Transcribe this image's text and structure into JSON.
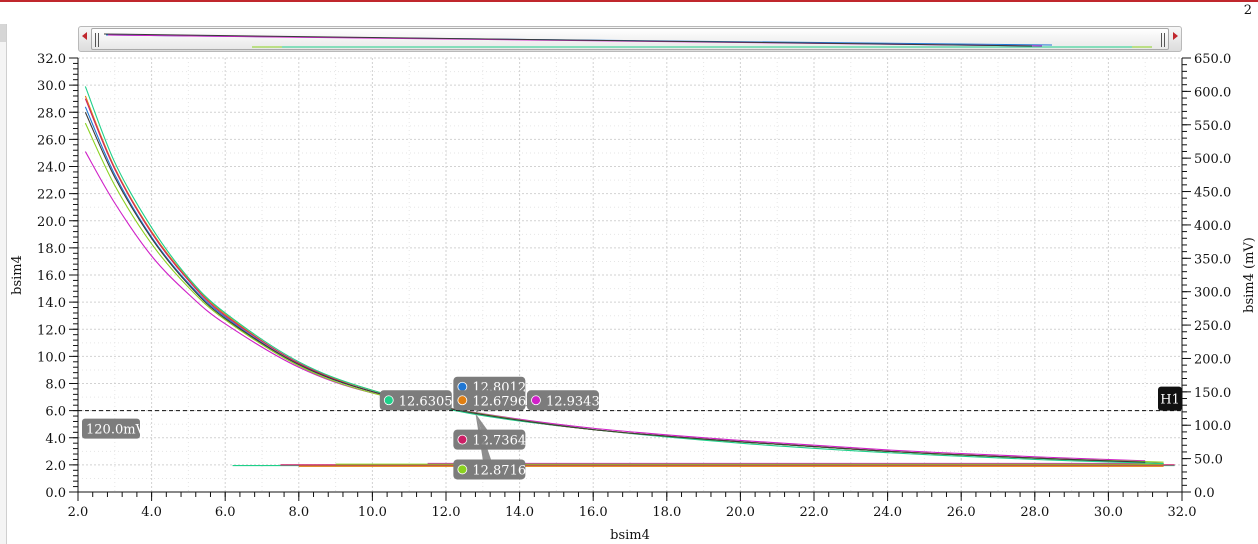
{
  "page_number": "2",
  "chart_data": {
    "type": "line",
    "xlabel": "bsim4",
    "ylabel": "bsim4",
    "y2label": "bsim4 (mV)",
    "xlim": [
      2.0,
      32.0
    ],
    "ylim": [
      0.0,
      32.0
    ],
    "y2lim": [
      0.0,
      650.0
    ],
    "x_ticks": [
      "2.0",
      "4.0",
      "6.0",
      "8.0",
      "10.0",
      "12.0",
      "14.0",
      "16.0",
      "18.0",
      "20.0",
      "22.0",
      "24.0",
      "26.0",
      "28.0",
      "30.0",
      "32.0"
    ],
    "y_ticks": [
      "0.0",
      "2.0",
      "4.0",
      "6.0",
      "8.0",
      "10.0",
      "12.0",
      "14.0",
      "16.0",
      "18.0",
      "20.0",
      "22.0",
      "24.0",
      "26.0",
      "28.0",
      "30.0",
      "32.0"
    ],
    "y2_ticks": [
      "0.0",
      "50.0",
      "100.0",
      "150.0",
      "200.0",
      "250.0",
      "300.0",
      "350.0",
      "400.0",
      "450.0",
      "500.0",
      "550.0",
      "600.0",
      "650.0"
    ],
    "grid": true,
    "series": [
      {
        "color": "#1f77d4",
        "x": [
          2.2,
          3.0,
          4.0,
          5.0,
          6.0,
          8.0,
          10.0,
          12.8012,
          16.0,
          20.0,
          24.0,
          28.0,
          31.0
        ],
        "values": [
          28.4,
          23.4,
          18.8,
          15.4,
          12.9,
          9.4,
          7.4,
          5.8,
          4.6,
          3.7,
          3.0,
          2.5,
          2.2
        ]
      },
      {
        "color": "#e07f12",
        "x": [
          2.2,
          3.0,
          4.0,
          5.0,
          6.0,
          8.0,
          10.0,
          12.6796,
          16.0,
          20.0,
          24.0,
          28.0,
          31.5
        ],
        "values": [
          29.2,
          23.9,
          19.2,
          15.7,
          13.1,
          9.5,
          7.5,
          5.8,
          4.6,
          3.7,
          3.0,
          2.5,
          2.1
        ]
      },
      {
        "color": "#d020c8",
        "x": [
          2.2,
          3.0,
          4.0,
          5.0,
          6.0,
          8.0,
          10.0,
          12.9343,
          16.0,
          20.0,
          24.0,
          28.0,
          31.0
        ],
        "values": [
          25.1,
          21.3,
          17.4,
          14.6,
          12.4,
          9.2,
          7.3,
          5.8,
          4.7,
          3.8,
          3.1,
          2.6,
          2.3
        ]
      },
      {
        "color": "#cc1f66",
        "x": [
          2.2,
          3.0,
          4.0,
          5.0,
          6.0,
          8.0,
          10.0,
          12.7364,
          16.0,
          20.0,
          24.0,
          28.0,
          31.5
        ],
        "values": [
          29.0,
          23.8,
          19.1,
          15.6,
          13.0,
          9.5,
          7.4,
          5.8,
          4.6,
          3.7,
          3.0,
          2.5,
          2.1
        ]
      },
      {
        "color": "#1fd08a",
        "x": [
          2.2,
          3.0,
          4.0,
          5.0,
          6.0,
          8.0,
          10.0,
          12.6305,
          16.0,
          20.0,
          24.0,
          28.0,
          31.5
        ],
        "values": [
          29.9,
          24.3,
          19.5,
          15.8,
          13.2,
          9.6,
          7.5,
          5.8,
          4.6,
          3.6,
          2.9,
          2.4,
          2.1
        ]
      },
      {
        "color": "#8ad21f",
        "x": [
          2.2,
          3.0,
          4.0,
          5.0,
          6.0,
          8.0,
          10.0,
          12.8716,
          16.0,
          20.0,
          24.0,
          28.0,
          31.5
        ],
        "values": [
          27.2,
          22.6,
          18.3,
          15.1,
          12.7,
          9.3,
          7.3,
          5.8,
          4.6,
          3.7,
          3.0,
          2.5,
          2.2
        ]
      },
      {
        "color": "#3a3a3a",
        "x": [
          2.2,
          3.0,
          4.0,
          5.0,
          6.0,
          8.0,
          10.0,
          12.8,
          16.0,
          20.0,
          24.0,
          28.0,
          31.0
        ],
        "values": [
          28.0,
          23.2,
          18.7,
          15.3,
          12.8,
          9.4,
          7.4,
          5.8,
          4.6,
          3.7,
          3.0,
          2.5,
          2.2
        ]
      }
    ],
    "flat_series": [
      {
        "color": "#1fd08a",
        "x": [
          6.2,
          31.8
        ],
        "values": [
          1.95,
          1.95
        ]
      },
      {
        "color": "#cc1f66",
        "x": [
          7.5,
          31.8
        ],
        "values": [
          2.0,
          2.0
        ]
      },
      {
        "color": "#d020c8",
        "x": [
          11.5,
          31.0
        ],
        "values": [
          2.1,
          2.1
        ]
      },
      {
        "color": "#8ad21f",
        "x": [
          9.0,
          31.5
        ],
        "values": [
          2.05,
          2.05
        ]
      },
      {
        "color": "#e07f12",
        "x": [
          8.0,
          31.5
        ],
        "values": [
          1.9,
          1.9
        ]
      }
    ],
    "hline": {
      "label": "H1",
      "y": 6.0,
      "readout": "120.0mV"
    },
    "markers": [
      {
        "value": "12.8012",
        "color": "#1f77d4",
        "label_pos": [
          12.2,
          8.5
        ]
      },
      {
        "value": "12.6305",
        "color": "#1fd08a",
        "label_pos": [
          10.2,
          7.5
        ]
      },
      {
        "value": "12.6796",
        "color": "#e07f12",
        "label_pos": [
          12.2,
          7.5
        ]
      },
      {
        "value": "12.9343",
        "color": "#d020c8",
        "label_pos": [
          14.2,
          7.5
        ]
      },
      {
        "value": "12.7364",
        "color": "#cc1f66",
        "label_pos": [
          12.2,
          4.6
        ]
      },
      {
        "value": "12.8716",
        "color": "#8ad21f",
        "label_pos": [
          12.2,
          2.4
        ]
      }
    ],
    "crossing": [
      12.8,
      5.8
    ]
  }
}
